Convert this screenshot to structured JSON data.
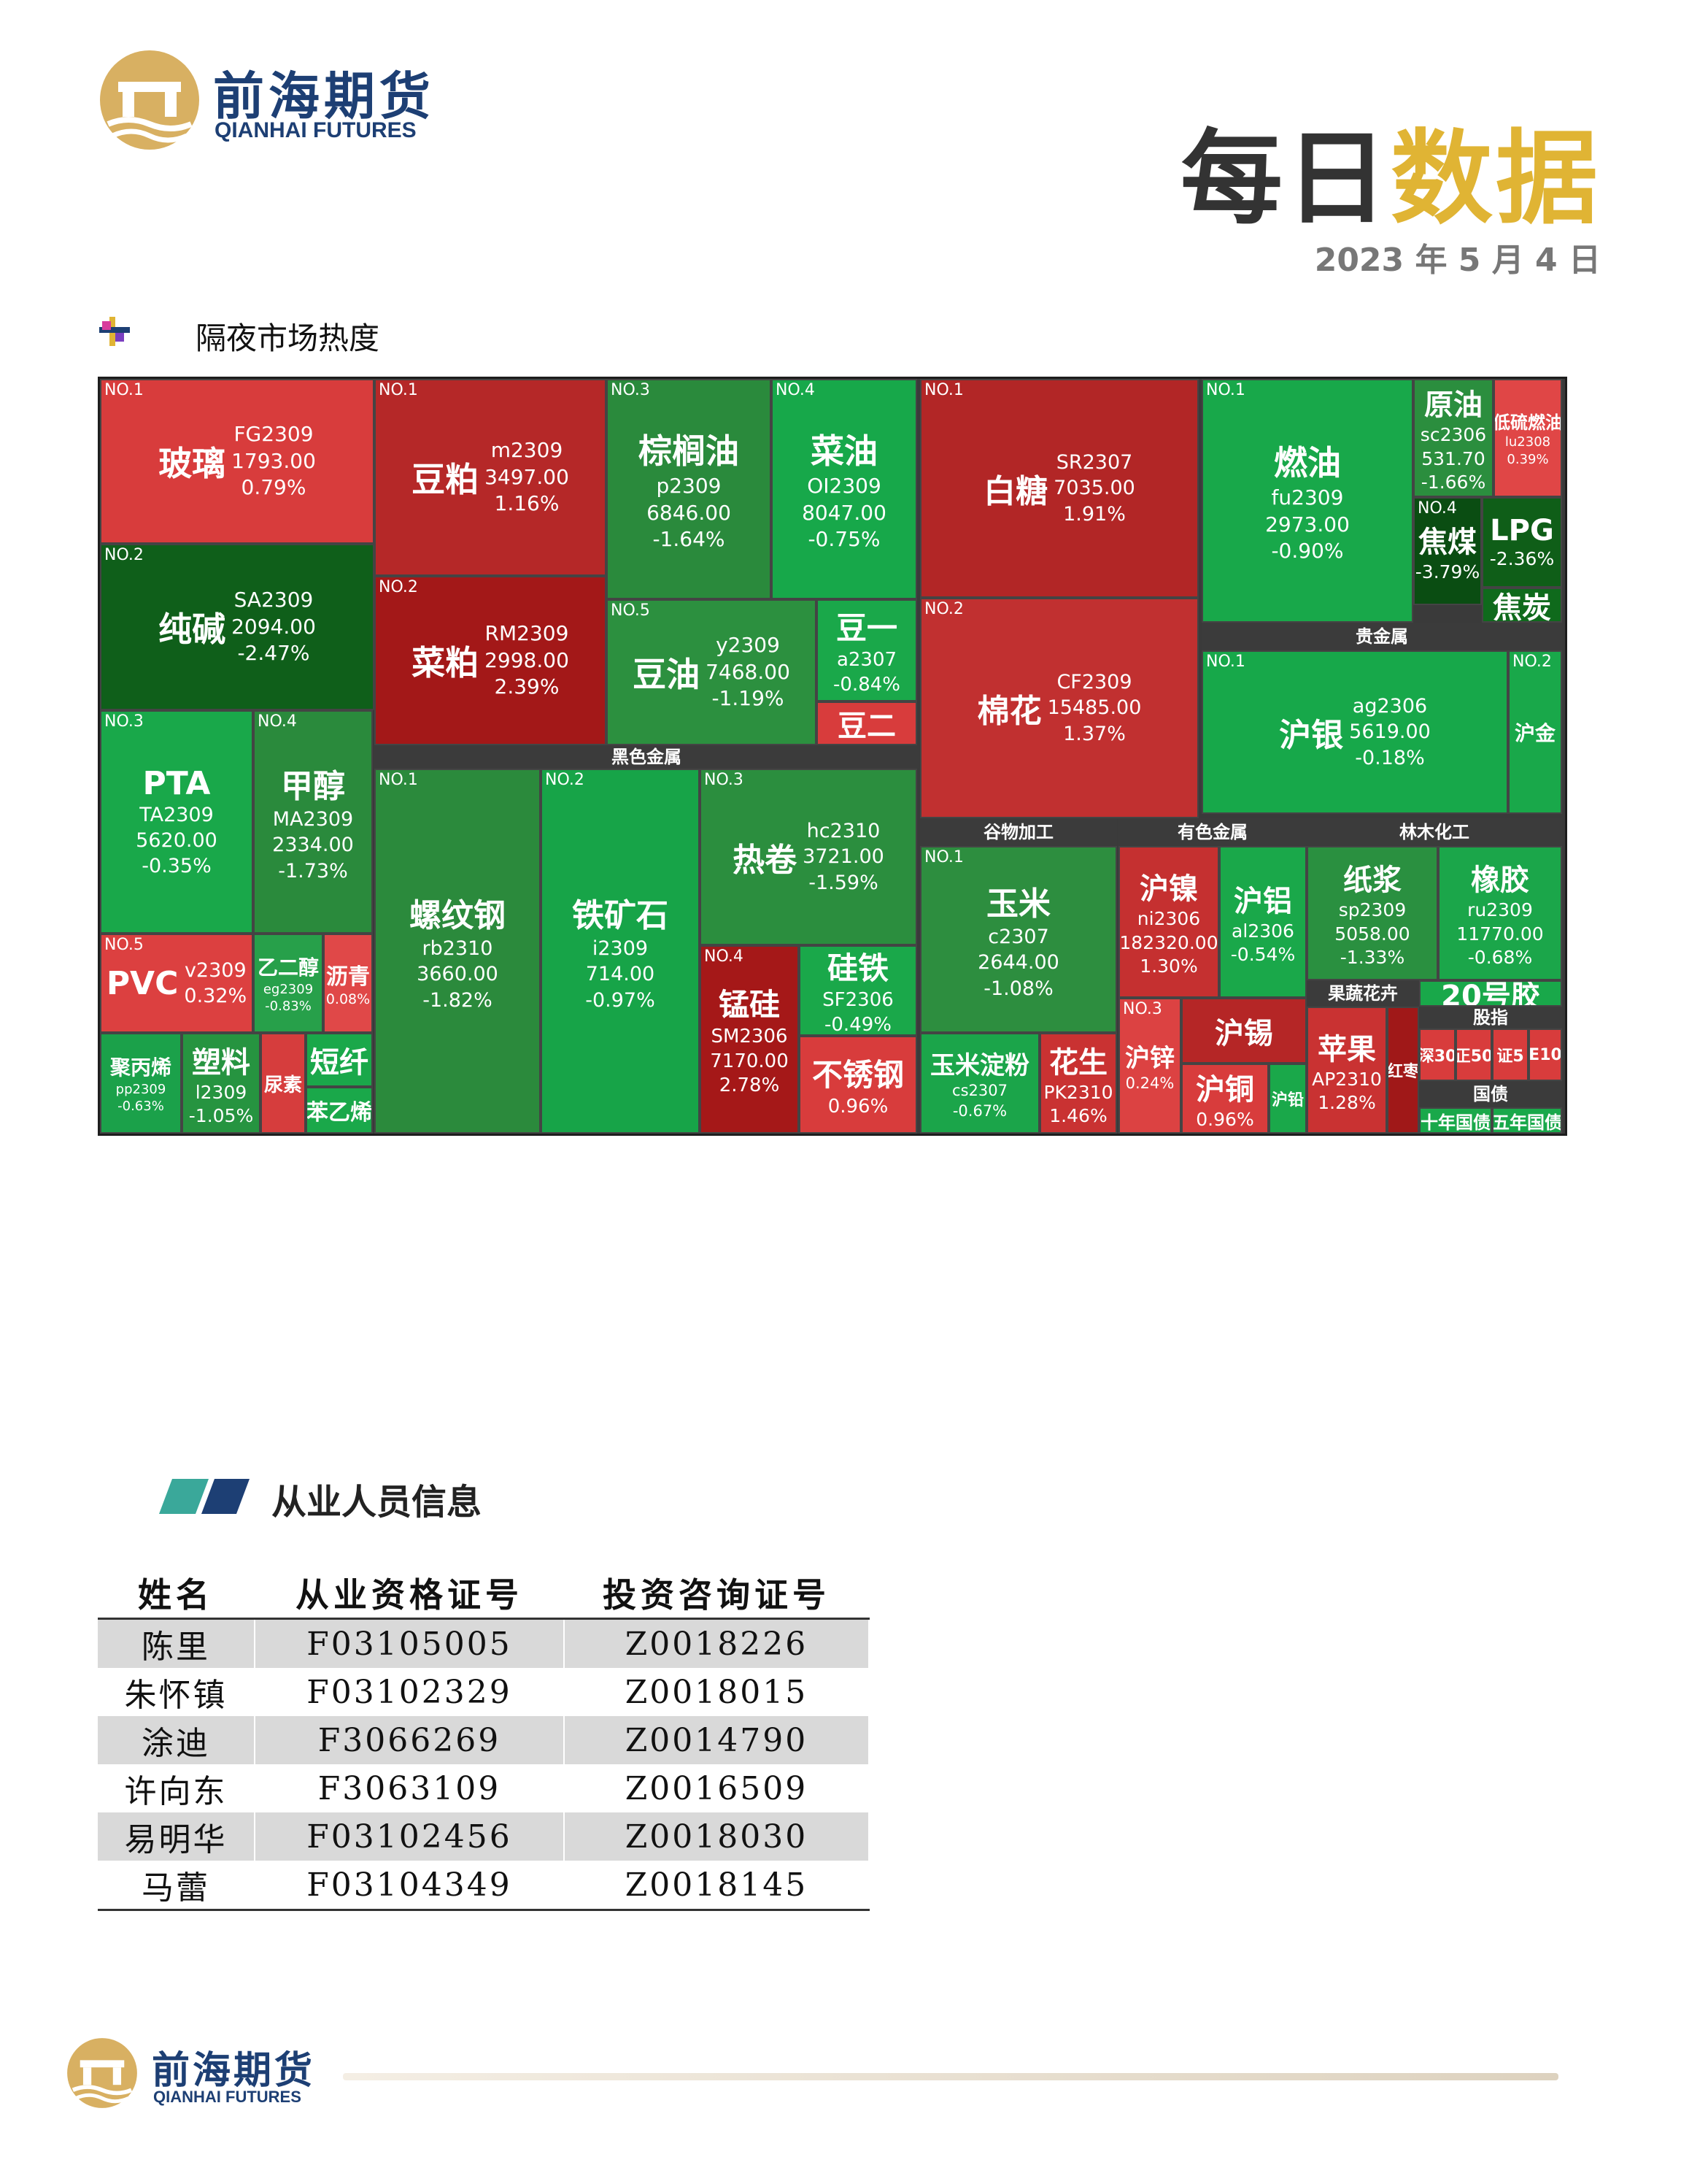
{
  "brand": {
    "name_cn": "前海期货",
    "name_en": "QIANHAI FUTURES"
  },
  "doc": {
    "title_a": "每日",
    "title_b": "数据",
    "date": "2023 年 5 月 4 日"
  },
  "section1": {
    "title": "隔夜市场热度"
  },
  "section2": {
    "title": "从业人员信息"
  },
  "colors": {
    "up_strong": "#a51c1c",
    "up": "#cc3434",
    "up_light": "#e55050",
    "down_strong": "#0b5c16",
    "down": "#2d8a3e",
    "down_light": "#13a84a",
    "brand_blue": "#1d3f74",
    "brand_gold": "#e0b434"
  },
  "treemap": {
    "headers": [
      "黑色金属",
      "谷物加工",
      "有色金属",
      "林木化工",
      "贵金属",
      "果蔬花卉",
      "股指",
      "国债"
    ],
    "tiles": [
      {
        "rank": "NO.1",
        "name": "玻璃",
        "code": "FG2309",
        "price": "1793.00",
        "chg": "0.79%",
        "color": "#d83c3c"
      },
      {
        "rank": "NO.2",
        "name": "纯碱",
        "code": "SA2309",
        "price": "2094.00",
        "chg": "-2.47%",
        "color": "#0f5f1a"
      },
      {
        "rank": "NO.3",
        "name": "PTA",
        "code": "TA2309",
        "price": "5620.00",
        "chg": "-0.35%",
        "color": "#19a84a"
      },
      {
        "rank": "NO.4",
        "name": "甲醇",
        "code": "MA2309",
        "price": "2334.00",
        "chg": "-1.73%",
        "color": "#2a8a3c"
      },
      {
        "rank": "NO.5",
        "name": "PVC",
        "code": "v2309",
        "price": "",
        "chg": "0.32%",
        "color": "#dc4040"
      },
      {
        "rank": "",
        "name": "乙二醇",
        "code": "eg2309",
        "price": "",
        "chg": "-0.83%",
        "color": "#27a04a"
      },
      {
        "rank": "",
        "name": "沥青",
        "code": "",
        "price": "",
        "chg": "0.08%",
        "color": "#e04848"
      },
      {
        "rank": "",
        "name": "聚丙烯",
        "code": "pp2309",
        "price": "",
        "chg": "-0.63%",
        "color": "#1ba14a"
      },
      {
        "rank": "",
        "name": "塑料",
        "code": "l2309",
        "price": "",
        "chg": "-1.05%",
        "color": "#269440"
      },
      {
        "rank": "",
        "name": "尿素",
        "code": "",
        "price": "",
        "chg": "",
        "color": "#d63d3d"
      },
      {
        "rank": "",
        "name": "短纤",
        "code": "",
        "price": "",
        "chg": "",
        "color": "#1aa84a"
      },
      {
        "rank": "",
        "name": "苯乙烯",
        "code": "",
        "price": "",
        "chg": "",
        "color": "#1aa84a"
      },
      {
        "rank": "NO.1",
        "name": "豆粕",
        "code": "m2309",
        "price": "3497.00",
        "chg": "1.16%",
        "color": "#b52828"
      },
      {
        "rank": "NO.2",
        "name": "菜粕",
        "code": "RM2309",
        "price": "2998.00",
        "chg": "2.39%",
        "color": "#a31818"
      },
      {
        "rank": "NO.3",
        "name": "棕榈油",
        "code": "p2309",
        "price": "6846.00",
        "chg": "-1.64%",
        "color": "#2a8a3c"
      },
      {
        "rank": "NO.4",
        "name": "菜油",
        "code": "OI2309",
        "price": "8047.00",
        "chg": "-0.75%",
        "color": "#17a84a"
      },
      {
        "rank": "NO.5",
        "name": "豆油",
        "code": "y2309",
        "price": "7468.00",
        "chg": "-1.19%",
        "color": "#2c903f"
      },
      {
        "rank": "",
        "name": "豆一",
        "code": "a2307",
        "price": "",
        "chg": "-0.84%",
        "color": "#1aa84a"
      },
      {
        "rank": "",
        "name": "豆二",
        "code": "",
        "price": "",
        "chg": "",
        "color": "#d83c3c"
      },
      {
        "rank": "NO.1",
        "name": "螺纹钢",
        "code": "rb2310",
        "price": "3660.00",
        "chg": "-1.82%",
        "color": "#2b8a3c"
      },
      {
        "rank": "NO.2",
        "name": "铁矿石",
        "code": "i2309",
        "price": "714.00",
        "chg": "-0.97%",
        "color": "#17a448"
      },
      {
        "rank": "NO.3",
        "name": "热卷",
        "code": "hc2310",
        "price": "3721.00",
        "chg": "-1.59%",
        "color": "#2b8e3e"
      },
      {
        "rank": "NO.4",
        "name": "锰硅",
        "code": "SM2306",
        "price": "7170.00",
        "chg": "2.78%",
        "color": "#a51818"
      },
      {
        "rank": "",
        "name": "硅铁",
        "code": "SF2306",
        "price": "",
        "chg": "-0.49%",
        "color": "#1aa84a"
      },
      {
        "rank": "",
        "name": "不锈钢",
        "code": "",
        "price": "",
        "chg": "0.96%",
        "color": "#d83c3c"
      },
      {
        "rank": "NO.1",
        "name": "白糖",
        "code": "SR2307",
        "price": "7035.00",
        "chg": "1.91%",
        "color": "#b22626"
      },
      {
        "rank": "NO.2",
        "name": "棉花",
        "code": "CF2309",
        "price": "15485.00",
        "chg": "1.37%",
        "color": "#c13030"
      },
      {
        "rank": "NO.1",
        "name": "玉米",
        "code": "c2307",
        "price": "2644.00",
        "chg": "-1.08%",
        "color": "#2d8e3f"
      },
      {
        "rank": "",
        "name": "玉米淀粉",
        "code": "cs2307",
        "price": "",
        "chg": "-0.67%",
        "color": "#1ba54a"
      },
      {
        "rank": "",
        "name": "花生",
        "code": "PK2310",
        "price": "",
        "chg": "1.46%",
        "color": "#c93232"
      },
      {
        "rank": "",
        "name": "沪镍",
        "code": "ni2306",
        "price": "182320.00",
        "chg": "1.30%",
        "color": "#c53030"
      },
      {
        "rank": "",
        "name": "沪铝",
        "code": "al2306",
        "price": "",
        "chg": "-0.54%",
        "color": "#1aa84a"
      },
      {
        "rank": "NO.3",
        "name": "沪锌",
        "code": "",
        "price": "",
        "chg": "0.24%",
        "color": "#dc4242"
      },
      {
        "rank": "",
        "name": "沪锡",
        "code": "",
        "price": "",
        "chg": "",
        "color": "#b52626"
      },
      {
        "rank": "",
        "name": "沪铜",
        "code": "",
        "price": "",
        "chg": "0.96%",
        "color": "#d83c3c"
      },
      {
        "rank": "",
        "name": "沪铅",
        "code": "",
        "price": "",
        "chg": "",
        "color": "#1aa84a"
      },
      {
        "rank": "",
        "name": "纸浆",
        "code": "sp2309",
        "price": "5058.00",
        "chg": "-1.33%",
        "color": "#2a9040"
      },
      {
        "rank": "",
        "name": "橡胶",
        "code": "ru2309",
        "price": "11770.00",
        "chg": "-0.68%",
        "color": "#1ba64a"
      },
      {
        "rank": "NO.1",
        "name": "燃油",
        "code": "fu2309",
        "price": "2973.00",
        "chg": "-0.90%",
        "color": "#18a84a"
      },
      {
        "rank": "",
        "name": "原油",
        "code": "sc2306",
        "price": "531.70",
        "chg": "-1.66%",
        "color": "#2b8e3e"
      },
      {
        "rank": "",
        "name": "低硫燃油",
        "code": "lu2308",
        "price": "",
        "chg": "0.39%",
        "color": "#e04646"
      },
      {
        "rank": "NO.4",
        "name": "焦煤",
        "code": "",
        "price": "",
        "chg": "-3.79%",
        "color": "#0a4d12"
      },
      {
        "rank": "",
        "name": "LPG",
        "code": "",
        "price": "",
        "chg": "-2.36%",
        "color": "#0f5e18"
      },
      {
        "rank": "",
        "name": "焦炭",
        "code": "",
        "price": "",
        "chg": "",
        "color": "#0f6a1c"
      },
      {
        "rank": "NO.1",
        "name": "沪银",
        "code": "ag2306",
        "price": "5619.00",
        "chg": "-0.18%",
        "color": "#17a84a"
      },
      {
        "rank": "NO.2",
        "name": "沪金",
        "code": "",
        "price": "",
        "chg": "",
        "color": "#19a84a"
      },
      {
        "rank": "",
        "name": "苹果",
        "code": "AP2310",
        "price": "",
        "chg": "1.28%",
        "color": "#c93232"
      },
      {
        "rank": "",
        "name": "红枣",
        "code": "",
        "price": "",
        "chg": "",
        "color": "#a01818"
      },
      {
        "rank": "",
        "name": "20号胶",
        "code": "",
        "price": "",
        "chg": "",
        "color": "#19a84a"
      },
      {
        "rank": "",
        "name": "深30",
        "code": "",
        "price": "",
        "chg": "",
        "color": "#d83c3c"
      },
      {
        "rank": "",
        "name": "正50",
        "code": "",
        "price": "",
        "chg": "",
        "color": "#d83c3c"
      },
      {
        "rank": "",
        "name": "证5",
        "code": "",
        "price": "",
        "chg": "",
        "color": "#d83c3c"
      },
      {
        "rank": "",
        "name": "E10",
        "code": "",
        "price": "",
        "chg": "",
        "color": "#d83c3c"
      },
      {
        "rank": "",
        "name": "十年国债",
        "code": "",
        "price": "",
        "chg": "",
        "color": "#19a84a"
      },
      {
        "rank": "",
        "name": "五年国债",
        "code": "",
        "price": "",
        "chg": "",
        "color": "#19a84a"
      }
    ]
  },
  "staff": {
    "headers": [
      "姓名",
      "从业资格证号",
      "投资咨询证号"
    ],
    "rows": [
      [
        "陈里",
        "F03105005",
        "Z0018226"
      ],
      [
        "朱怀镇",
        "F03102329",
        "Z0018015"
      ],
      [
        "涂迪",
        "F3066269",
        "Z0014790"
      ],
      [
        "许向东",
        "F3063109",
        "Z0016509"
      ],
      [
        "易明华",
        "F03102456",
        "Z0018030"
      ],
      [
        "马蕾",
        "F03104349",
        "Z0018145"
      ]
    ]
  }
}
